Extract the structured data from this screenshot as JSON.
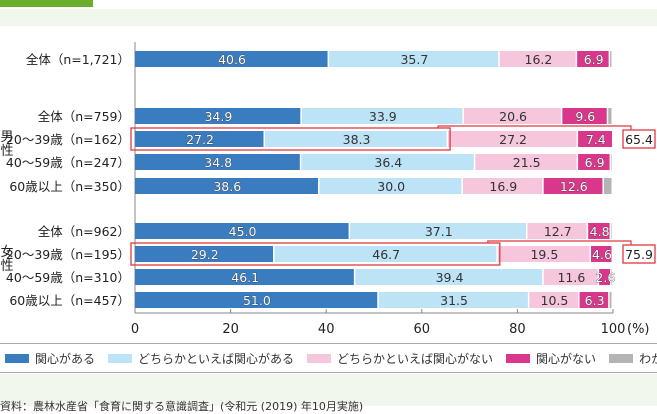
{
  "chart_data": {
    "type": "bar",
    "orientation": "horizontal-stacked-100",
    "title": "",
    "xlabel": "",
    "x_unit_label": "(%)",
    "xlim": [
      0,
      100
    ],
    "xticks": [
      "0",
      "20",
      "40",
      "60",
      "80",
      "100"
    ],
    "legend_position": "bottom",
    "categories": [
      {
        "label": "全体（n=1,721）",
        "group": ""
      },
      {
        "label": "全体（n=759）",
        "group": "男性"
      },
      {
        "label": "20～39歳（n=162）",
        "group": "男性",
        "highlight": true
      },
      {
        "label": "40～59歳（n=247）",
        "group": "男性"
      },
      {
        "label": "60歳以上（n=350）",
        "group": "男性"
      },
      {
        "label": "全体（n=962）",
        "group": "女性"
      },
      {
        "label": "20～39歳（n=195）",
        "group": "女性",
        "highlight": true
      },
      {
        "label": "40～59歳（n=310）",
        "group": "女性"
      },
      {
        "label": "60歳以上（n=457）",
        "group": "女性"
      }
    ],
    "series": [
      {
        "name": "関心がある",
        "color": "#3a7cc0",
        "values": [
          40.6,
          34.9,
          27.2,
          34.8,
          38.6,
          45.0,
          29.2,
          46.1,
          51.0
        ],
        "labels": [
          "40.6",
          "34.9",
          "27.2",
          "34.8",
          "38.6",
          "45.0",
          "29.2",
          "46.1",
          "51.0"
        ]
      },
      {
        "name": "どちらかといえば関心がある",
        "color": "#bde3f7",
        "values": [
          35.7,
          33.9,
          38.3,
          36.4,
          30.0,
          37.1,
          46.7,
          39.4,
          31.5
        ],
        "labels": [
          "35.7",
          "33.9",
          "38.3",
          "36.4",
          "30.0",
          "37.1",
          "46.7",
          "39.4",
          "31.5"
        ]
      },
      {
        "name": "どちらかといえば関心がない",
        "color": "#f5c6dc",
        "values": [
          16.2,
          20.6,
          27.2,
          21.5,
          16.9,
          12.7,
          19.5,
          11.6,
          10.5
        ],
        "labels": [
          "16.2",
          "20.6",
          "27.2",
          "21.5",
          "16.9",
          "12.7",
          "19.5",
          "11.6",
          "10.5"
        ]
      },
      {
        "name": "関心がない",
        "color": "#d9378b",
        "values": [
          6.9,
          9.6,
          7.4,
          6.9,
          12.6,
          4.8,
          4.6,
          2.6,
          6.3
        ],
        "labels": [
          "6.9",
          "9.6",
          "7.4",
          "6.9",
          "12.6",
          "4.8",
          "4.6",
          "2.6",
          "6.3"
        ]
      },
      {
        "name": "わからない",
        "color": "#b4b4b4",
        "values": [
          0.6,
          1.0,
          0.0,
          0.4,
          1.9,
          0.4,
          0.0,
          0.3,
          0.7
        ],
        "labels": [
          "",
          "",
          "",
          "",
          "",
          "",
          "",
          "",
          ""
        ]
      }
    ],
    "annotations": [
      {
        "row": 2,
        "text": "65.4",
        "note": "sum of 関心がある + どちらかといえば関心がある (boxed); bracket to 関心がない side"
      },
      {
        "row": 6,
        "text": "75.9",
        "note": "sum of 関心がある + どちらかといえば関心がある (boxed); bracket to 関心がない side"
      }
    ],
    "group_labels": [
      "男性",
      "女性"
    ]
  },
  "source": "資料：農林水産省「食育に関する意識調査」(令和元 (2019) 年10月実施)"
}
